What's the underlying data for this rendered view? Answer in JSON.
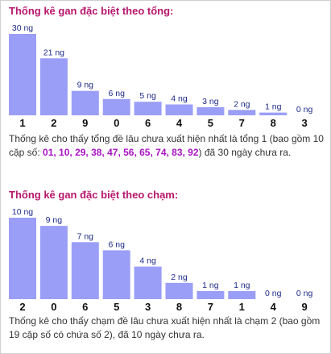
{
  "chart_data": [
    {
      "type": "bar",
      "title": "Thống kê gan đặc biệt theo tổng:",
      "categories": [
        "1",
        "2",
        "9",
        "0",
        "6",
        "4",
        "5",
        "7",
        "8",
        "3"
      ],
      "values": [
        30,
        21,
        9,
        6,
        5,
        4,
        3,
        2,
        1,
        0
      ],
      "data_labels": [
        "30 ng",
        "21 ng",
        "9 ng",
        "6 ng",
        "5 ng",
        "4 ng",
        "3 ng",
        "2 ng",
        "1 ng",
        "0 ng"
      ],
      "xlabel": "",
      "ylabel": "",
      "ylim": [
        0,
        30
      ],
      "grid": false,
      "legend": "none",
      "description": {
        "before": "Thống kê cho thấy tổng đề lâu chưa xuất hiện nhất là tổng 1 (bao gồm 10 cặp số: ",
        "highlight": "01, 10, 29, 38, 47, 56, 65, 74, 83, 92",
        "after": ") đã 30 ngày chưa ra."
      }
    },
    {
      "type": "bar",
      "title": "Thống kê gan đặc biệt theo chạm:",
      "categories": [
        "2",
        "0",
        "6",
        "5",
        "3",
        "8",
        "7",
        "1",
        "4",
        "9"
      ],
      "values": [
        10,
        9,
        7,
        6,
        4,
        2,
        1,
        1,
        0,
        0
      ],
      "data_labels": [
        "10 ng",
        "9 ng",
        "7 ng",
        "6 ng",
        "4 ng",
        "2 ng",
        "1 ng",
        "1 ng",
        "0 ng",
        "0 ng"
      ],
      "xlabel": "",
      "ylabel": "",
      "ylim": [
        0,
        10
      ],
      "grid": false,
      "legend": "none",
      "description": {
        "before": "Thống kê cho thấy chạm đề lâu chưa xuất hiện nhất là chạm 2 (bao gồm 19 cặp số có chứa số 2), đã 10 ngày chưa ra.",
        "highlight": "",
        "after": ""
      }
    }
  ],
  "colors": {
    "title": "#b8176d",
    "bar": "#9b9ef6",
    "value_label": "#1d2a8a",
    "highlight": "#a913c3"
  }
}
